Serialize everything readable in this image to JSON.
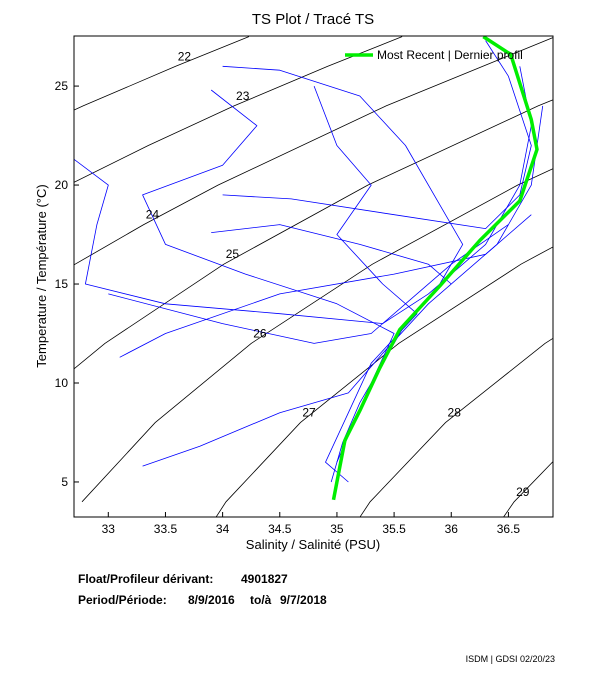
{
  "chart_data": {
    "type": "line",
    "title": "TS Plot / Tracé TS",
    "x_label": "Salinity / Salinité (PSU)",
    "y_label": "Temperature / Température (°C)",
    "xlim": [
      32.7,
      36.89
    ],
    "ylim": [
      3.23,
      27.53
    ],
    "xticks": [
      33,
      33.5,
      34,
      34.5,
      35,
      35.5,
      36,
      36.5
    ],
    "yticks": [
      5,
      10,
      15,
      20,
      25
    ],
    "legend": "top-right",
    "contour_color": "#000000",
    "contours": [
      {
        "label": 22,
        "x": [
          32.03,
          32.78,
          33.59,
          34.23
        ],
        "y": [
          22,
          24,
          26,
          27.5
        ]
      },
      {
        "label": 23,
        "x": [
          31.41,
          32.65,
          33.35,
          34.1,
          34.92,
          35.57
        ],
        "y": [
          16,
          20,
          22,
          24,
          26,
          27.5
        ]
      },
      {
        "label": 24,
        "x": [
          31.68,
          32.71,
          33.31,
          33.96,
          35.43,
          36.91
        ],
        "y": [
          12,
          16,
          18,
          20,
          24,
          27.5
        ]
      },
      {
        "label": 25,
        "x": [
          32.13,
          32.97,
          34.01,
          35.27,
          36.76,
          38.25
        ],
        "y": [
          8,
          12,
          16,
          20,
          24,
          27.5
        ]
      },
      {
        "label": 26,
        "x": [
          32.77,
          33.41,
          34.25,
          35.31,
          36.58,
          38.08
        ],
        "y": [
          4,
          8,
          12,
          16,
          20,
          24
        ]
      },
      {
        "label": 27,
        "x": [
          33.58,
          34.03,
          34.68,
          35.54,
          36.61,
          37.89
        ],
        "y": [
          0,
          4,
          8,
          12,
          16,
          20
        ]
      },
      {
        "label": 28,
        "x": [
          34.83,
          35.29,
          35.95,
          36.82,
          37.91
        ],
        "y": [
          0,
          4,
          8,
          12,
          16
        ]
      },
      {
        "label": 29,
        "x": [
          36.07,
          36.55,
          37.22
        ],
        "y": [
          0,
          4,
          8
        ]
      }
    ],
    "series": [
      {
        "color": "#0000ff",
        "x": [
          34.0,
          34.5,
          35.2,
          35.6,
          35.9,
          36.1,
          35.9,
          35.6,
          35.4,
          35.2,
          35.05,
          34.95
        ],
        "values": [
          26.0,
          25.8,
          24.5,
          22,
          19,
          17,
          15,
          13,
          11,
          9,
          7,
          5
        ]
      },
      {
        "color": "#0000ff",
        "x": [
          33.9,
          34.3,
          34.0,
          33.3,
          33.5,
          34.2,
          35.0,
          35.5,
          35.3,
          35.15,
          35.0
        ],
        "values": [
          24.8,
          23,
          21,
          19.5,
          17,
          15.5,
          14,
          12.5,
          10,
          8,
          6
        ]
      },
      {
        "color": "#0000ff",
        "x": [
          32.7,
          33.0,
          32.9,
          32.8,
          33.5,
          34.5,
          35.4,
          35.8,
          36.3,
          36.6,
          36.7,
          36.6
        ],
        "values": [
          21.3,
          20,
          18,
          15,
          14,
          13.5,
          13,
          14.5,
          17,
          20,
          23,
          26
        ]
      },
      {
        "color": "#0000ff",
        "x": [
          33.1,
          33.5,
          34.5,
          35.5,
          36.3,
          36.7
        ],
        "values": [
          11.3,
          12.5,
          14.5,
          15.5,
          16.5,
          18.5
        ]
      },
      {
        "color": "#0000ff",
        "x": [
          33.3,
          33.8,
          34.5,
          35.1,
          35.4,
          35.8,
          36.4,
          36.7,
          36.8
        ],
        "values": [
          5.8,
          6.8,
          8.5,
          9.5,
          11.5,
          14,
          17,
          20,
          24
        ]
      },
      {
        "color": "#0000ff",
        "x": [
          34.8,
          35.0,
          35.3,
          35.0,
          35.4,
          35.7,
          35.3,
          35.1,
          34.9,
          35.1
        ],
        "values": [
          25,
          22,
          20,
          17.5,
          15,
          13.5,
          11,
          8.5,
          6,
          5
        ]
      },
      {
        "color": "#0000ff",
        "x": [
          34.0,
          34.6,
          35.5,
          36.3,
          36.6,
          36.7,
          36.5,
          36.3
        ],
        "values": [
          19.5,
          19.3,
          18.5,
          17.8,
          19.5,
          22,
          25.5,
          27.3
        ]
      },
      {
        "color": "#0000ff",
        "x": [
          33.0,
          34.0,
          34.8,
          35.3,
          35.6,
          36.0,
          36.5
        ],
        "values": [
          14.5,
          13,
          12,
          12.5,
          14,
          16,
          18
        ]
      },
      {
        "color": "#0000ff",
        "x": [
          33.9,
          34.5,
          35.2,
          35.8,
          36.0
        ],
        "values": [
          17.6,
          18,
          17,
          16,
          15
        ]
      },
      {
        "name": "Most Recent | Dernier profil",
        "color": "#00ee00",
        "x": [
          36.28,
          36.52,
          36.7,
          36.75,
          36.6,
          36.25,
          35.9,
          35.55,
          35.37,
          35.2,
          35.07,
          35.02,
          34.97
        ],
        "values": [
          27.5,
          26.6,
          23.3,
          21.8,
          19.2,
          17.2,
          14.9,
          12.7,
          10.7,
          8.6,
          7.1,
          5.6,
          4.1
        ]
      }
    ]
  },
  "info": {
    "float_label": "Float/Profileur dérivant:",
    "float_id": "4901827",
    "period_label": "Period/Période:",
    "start": "8/9/2016",
    "to": "to/à",
    "end": "9/7/2018",
    "footer": "ISDM | GDSI 02/20/23"
  }
}
